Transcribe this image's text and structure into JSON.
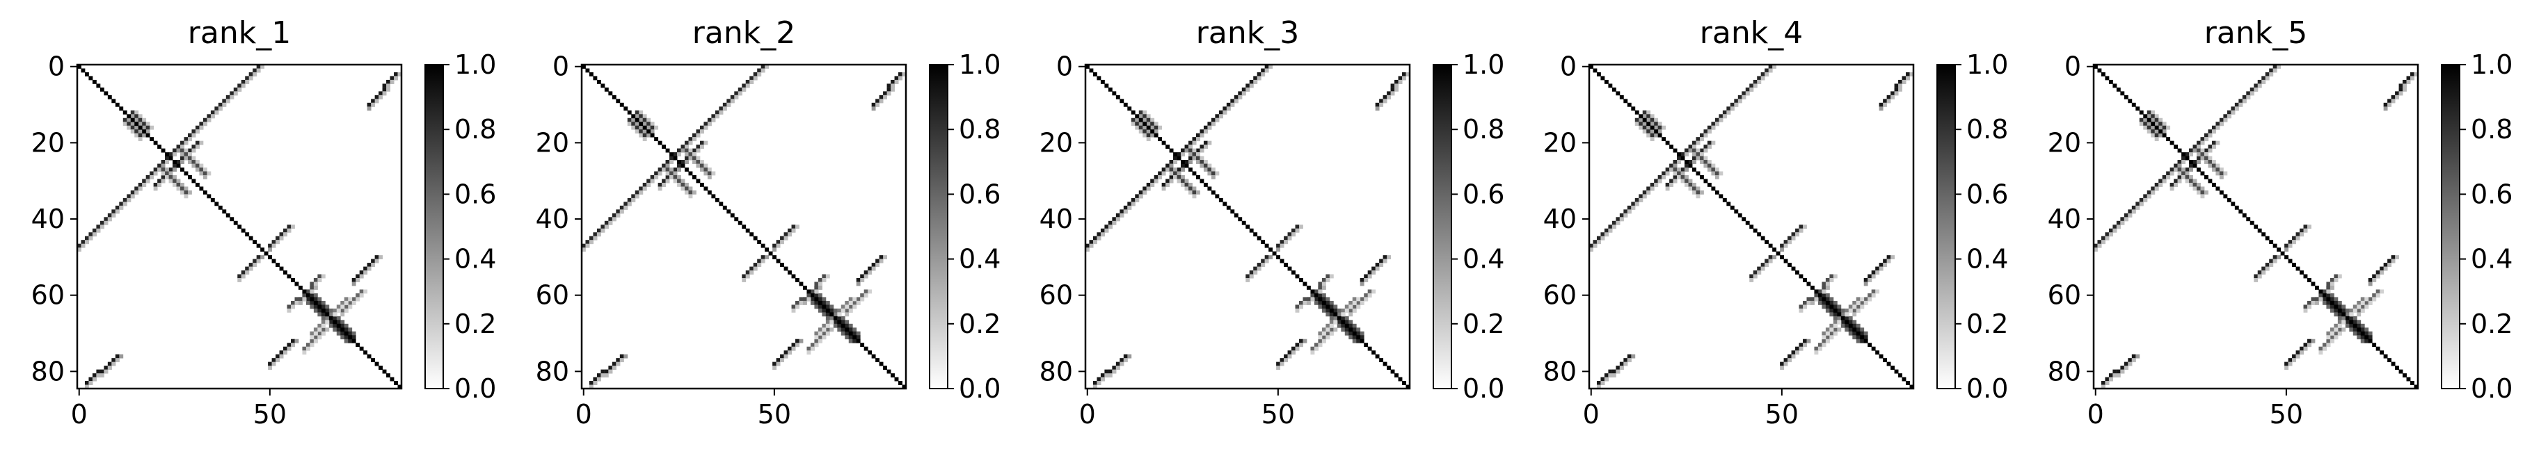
{
  "chart_data": [
    {
      "type": "heatmap",
      "title": "rank_1",
      "matrix_size": 85,
      "x_ticks": [
        0,
        50
      ],
      "y_ticks": [
        0,
        20,
        40,
        60,
        80
      ],
      "colorbar": {
        "min": 0.0,
        "max": 1.0,
        "ticks": [
          "0.0",
          "0.2",
          "0.4",
          "0.6",
          "0.8",
          "1.0"
        ],
        "colormap": "gray_r (white=0, black=1)"
      },
      "structures": {
        "diagonal": [
          [
            0,
            84
          ]
        ],
        "contacts": [
          {
            "from": [
              0,
              47
            ],
            "to": [
              25,
              22
            ],
            "value": 0.85
          },
          {
            "from": [
              2,
              83
            ],
            "to": [
              10,
              76
            ],
            "value": 0.9
          },
          {
            "from": [
              20,
              31
            ],
            "to": [
              26,
              25
            ],
            "value": 0.85
          },
          {
            "from": [
              12,
              14
            ],
            "to": [
              16,
              18
            ],
            "value": 0.8
          },
          {
            "from": [
              22,
              27
            ],
            "to": [
              28,
              33
            ],
            "value": 0.7
          },
          {
            "from": [
              42,
              55
            ],
            "to": [
              47,
              50
            ],
            "value": 0.85
          },
          {
            "from": [
              50,
              78
            ],
            "to": [
              56,
              72
            ],
            "value": 0.9
          },
          {
            "from": [
              55,
              63
            ],
            "to": [
              61,
              58
            ],
            "value": 0.7
          },
          {
            "from": [
              59,
              74
            ],
            "to": [
              64,
              69
            ],
            "value": 0.6
          },
          {
            "from": [
              61,
              70
            ],
            "to": [
              65,
              66
            ],
            "value": 0.5
          }
        ],
        "block": [
          [
            60,
            72
          ],
          0.85
        ]
      }
    },
    {
      "type": "heatmap",
      "title": "rank_2",
      "matrix_size": 85,
      "x_ticks": [
        0,
        50
      ],
      "y_ticks": [
        0,
        20,
        40,
        60,
        80
      ],
      "colorbar": {
        "min": 0.0,
        "max": 1.0,
        "ticks": [
          "0.0",
          "0.2",
          "0.4",
          "0.6",
          "0.8",
          "1.0"
        ],
        "colormap": "gray_r (white=0, black=1)"
      },
      "structures": {
        "diagonal": [
          [
            0,
            84
          ]
        ],
        "contacts": [
          {
            "from": [
              0,
              47
            ],
            "to": [
              25,
              22
            ],
            "value": 0.85
          },
          {
            "from": [
              2,
              83
            ],
            "to": [
              10,
              76
            ],
            "value": 0.9
          },
          {
            "from": [
              20,
              31
            ],
            "to": [
              26,
              25
            ],
            "value": 0.85
          },
          {
            "from": [
              12,
              14
            ],
            "to": [
              16,
              18
            ],
            "value": 0.8
          },
          {
            "from": [
              22,
              27
            ],
            "to": [
              28,
              33
            ],
            "value": 0.7
          },
          {
            "from": [
              42,
              55
            ],
            "to": [
              47,
              50
            ],
            "value": 0.85
          },
          {
            "from": [
              50,
              78
            ],
            "to": [
              56,
              72
            ],
            "value": 0.9
          },
          {
            "from": [
              55,
              63
            ],
            "to": [
              61,
              58
            ],
            "value": 0.7
          },
          {
            "from": [
              59,
              74
            ],
            "to": [
              64,
              69
            ],
            "value": 0.6
          },
          {
            "from": [
              61,
              70
            ],
            "to": [
              65,
              66
            ],
            "value": 0.5
          }
        ],
        "block": [
          [
            60,
            72
          ],
          0.85
        ]
      }
    },
    {
      "type": "heatmap",
      "title": "rank_3",
      "matrix_size": 85,
      "x_ticks": [
        0,
        50
      ],
      "y_ticks": [
        0,
        20,
        40,
        60,
        80
      ],
      "colorbar": {
        "min": 0.0,
        "max": 1.0,
        "ticks": [
          "0.0",
          "0.2",
          "0.4",
          "0.6",
          "0.8",
          "1.0"
        ],
        "colormap": "gray_r (white=0, black=1)"
      },
      "structures": {
        "diagonal": [
          [
            0,
            84
          ]
        ],
        "contacts": [
          {
            "from": [
              0,
              47
            ],
            "to": [
              25,
              22
            ],
            "value": 0.9
          },
          {
            "from": [
              2,
              83
            ],
            "to": [
              10,
              76
            ],
            "value": 0.9
          },
          {
            "from": [
              20,
              31
            ],
            "to": [
              26,
              25
            ],
            "value": 0.9
          },
          {
            "from": [
              12,
              14
            ],
            "to": [
              16,
              18
            ],
            "value": 0.8
          },
          {
            "from": [
              22,
              27
            ],
            "to": [
              28,
              33
            ],
            "value": 0.75
          },
          {
            "from": [
              42,
              55
            ],
            "to": [
              47,
              50
            ],
            "value": 0.85
          },
          {
            "from": [
              50,
              78
            ],
            "to": [
              56,
              72
            ],
            "value": 0.9
          },
          {
            "from": [
              55,
              63
            ],
            "to": [
              61,
              58
            ],
            "value": 0.7
          },
          {
            "from": [
              59,
              74
            ],
            "to": [
              64,
              69
            ],
            "value": 0.6
          },
          {
            "from": [
              61,
              70
            ],
            "to": [
              65,
              66
            ],
            "value": 0.5
          }
        ],
        "block": [
          [
            60,
            72
          ],
          0.85
        ]
      }
    },
    {
      "type": "heatmap",
      "title": "rank_4",
      "matrix_size": 85,
      "x_ticks": [
        0,
        50
      ],
      "y_ticks": [
        0,
        20,
        40,
        60,
        80
      ],
      "colorbar": {
        "min": 0.0,
        "max": 1.0,
        "ticks": [
          "0.0",
          "0.2",
          "0.4",
          "0.6",
          "0.8",
          "1.0"
        ],
        "colormap": "gray_r (white=0, black=1)"
      },
      "structures": {
        "diagonal": [
          [
            0,
            84
          ]
        ],
        "contacts": [
          {
            "from": [
              0,
              47
            ],
            "to": [
              25,
              22
            ],
            "value": 0.85
          },
          {
            "from": [
              2,
              83
            ],
            "to": [
              10,
              76
            ],
            "value": 0.9
          },
          {
            "from": [
              20,
              31
            ],
            "to": [
              26,
              25
            ],
            "value": 0.85
          },
          {
            "from": [
              12,
              14
            ],
            "to": [
              16,
              18
            ],
            "value": 0.8
          },
          {
            "from": [
              22,
              27
            ],
            "to": [
              28,
              33
            ],
            "value": 0.7
          },
          {
            "from": [
              42,
              55
            ],
            "to": [
              47,
              50
            ],
            "value": 0.85
          },
          {
            "from": [
              50,
              78
            ],
            "to": [
              56,
              72
            ],
            "value": 0.9
          },
          {
            "from": [
              55,
              63
            ],
            "to": [
              61,
              58
            ],
            "value": 0.7
          },
          {
            "from": [
              59,
              74
            ],
            "to": [
              64,
              69
            ],
            "value": 0.6
          },
          {
            "from": [
              61,
              70
            ],
            "to": [
              65,
              66
            ],
            "value": 0.5
          }
        ],
        "block": [
          [
            60,
            72
          ],
          0.85
        ]
      }
    },
    {
      "type": "heatmap",
      "title": "rank_5",
      "matrix_size": 85,
      "x_ticks": [
        0,
        50
      ],
      "y_ticks": [
        0,
        20,
        40,
        60,
        80
      ],
      "colorbar": {
        "min": 0.0,
        "max": 1.0,
        "ticks": [
          "0.0",
          "0.2",
          "0.4",
          "0.6",
          "0.8",
          "1.0"
        ],
        "colormap": "gray_r (white=0, black=1)"
      },
      "structures": {
        "diagonal": [
          [
            0,
            84
          ]
        ],
        "contacts": [
          {
            "from": [
              0,
              47
            ],
            "to": [
              25,
              22
            ],
            "value": 0.85
          },
          {
            "from": [
              2,
              83
            ],
            "to": [
              10,
              76
            ],
            "value": 0.9
          },
          {
            "from": [
              20,
              31
            ],
            "to": [
              26,
              25
            ],
            "value": 0.85
          },
          {
            "from": [
              12,
              14
            ],
            "to": [
              16,
              18
            ],
            "value": 0.8
          },
          {
            "from": [
              22,
              27
            ],
            "to": [
              28,
              33
            ],
            "value": 0.7
          },
          {
            "from": [
              42,
              55
            ],
            "to": [
              47,
              50
            ],
            "value": 0.85
          },
          {
            "from": [
              50,
              78
            ],
            "to": [
              56,
              72
            ],
            "value": 0.9
          },
          {
            "from": [
              55,
              63
            ],
            "to": [
              61,
              58
            ],
            "value": 0.7
          },
          {
            "from": [
              59,
              74
            ],
            "to": [
              64,
              69
            ],
            "value": 0.6
          },
          {
            "from": [
              61,
              70
            ],
            "to": [
              65,
              66
            ],
            "value": 0.5
          }
        ],
        "block": [
          [
            60,
            72
          ],
          0.85
        ]
      }
    }
  ]
}
